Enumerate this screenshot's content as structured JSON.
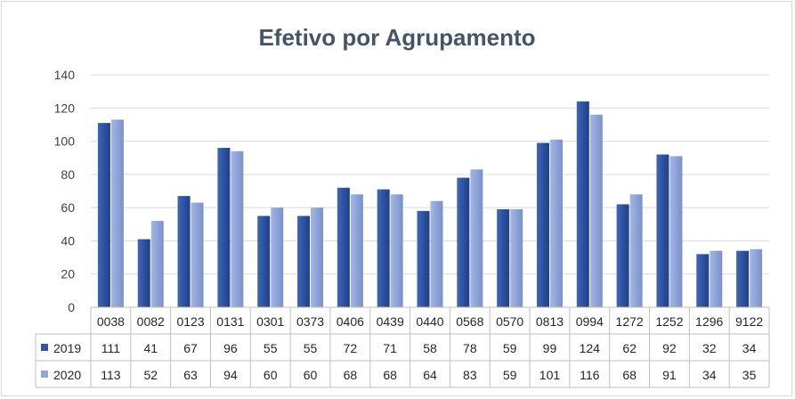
{
  "chart_data": {
    "type": "bar",
    "title": "Efetivo por Agrupamento",
    "xlabel": "",
    "ylabel": "",
    "ylim": [
      0,
      140
    ],
    "yticks": [
      0,
      20,
      40,
      60,
      80,
      100,
      120,
      140
    ],
    "grid": true,
    "legend": "data-table",
    "categories": [
      "0038",
      "0082",
      "0123",
      "0131",
      "0301",
      "0373",
      "0406",
      "0439",
      "0440",
      "0568",
      "0570",
      "0813",
      "0994",
      "1272",
      "1252",
      "1296",
      "9122"
    ],
    "series": [
      {
        "name": "2019",
        "color": "#2f55a4",
        "values": [
          111,
          41,
          67,
          96,
          55,
          55,
          72,
          71,
          58,
          78,
          59,
          99,
          124,
          62,
          92,
          32,
          34
        ]
      },
      {
        "name": "2020",
        "color": "#8fa6d9",
        "values": [
          113,
          52,
          63,
          94,
          60,
          60,
          68,
          68,
          64,
          83,
          59,
          101,
          116,
          68,
          91,
          34,
          35
        ]
      }
    ]
  }
}
